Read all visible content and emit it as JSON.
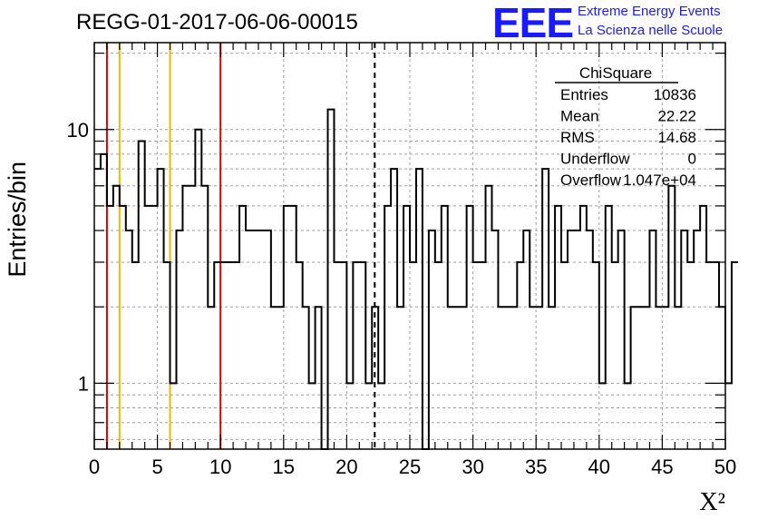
{
  "run_title": "REGG-01-2017-06-06-00015",
  "branding": {
    "logo_text": "EEE",
    "line1": "Extreme Energy Events",
    "line2": "La Scienza nelle Scuole",
    "color": "#1a1aff"
  },
  "chart_data": {
    "type": "histogram",
    "title": "",
    "xlabel": "X²",
    "ylabel": "Entries/bin",
    "xlim": [
      0,
      50
    ],
    "ylim": [
      0.55,
      22
    ],
    "yscale": "log",
    "grid": true,
    "x_ticks": [
      0,
      5,
      10,
      15,
      20,
      25,
      30,
      35,
      40,
      45,
      50
    ],
    "y_tick_labels": [
      {
        "value": 1,
        "label": "1"
      },
      {
        "value": 10,
        "label": "10"
      }
    ],
    "bin_width": 0.5,
    "bin_start": 0,
    "values": [
      7,
      8,
      5,
      6,
      5,
      4,
      3,
      9,
      5,
      5,
      7,
      3,
      1,
      4,
      6,
      6,
      10,
      6,
      2,
      3,
      3,
      3,
      3,
      5,
      4,
      4,
      4,
      4,
      2,
      2,
      5,
      5,
      3,
      2,
      1,
      2,
      0,
      12,
      3,
      3,
      1,
      3,
      3,
      1,
      2,
      1,
      5,
      7,
      2,
      5,
      3,
      7,
      0,
      4,
      3,
      5,
      2,
      2,
      2,
      5,
      3,
      3,
      6,
      4,
      2,
      2,
      2,
      3,
      4,
      2,
      2,
      7,
      2,
      5,
      3,
      4,
      4,
      5,
      4,
      3,
      1,
      5,
      3,
      4,
      1,
      2,
      2,
      2,
      4,
      2,
      2,
      6,
      2,
      4,
      3,
      4,
      5,
      3,
      3,
      2,
      1,
      3
    ],
    "vertical_lines": [
      {
        "x": 1,
        "color": "#dd0000",
        "style": "solid"
      },
      {
        "x": 2,
        "color": "#f2b800",
        "style": "solid"
      },
      {
        "x": 6,
        "color": "#f2b800",
        "style": "solid"
      },
      {
        "x": 10,
        "color": "#dd0000",
        "style": "solid"
      },
      {
        "x": 22.22,
        "color": "#000000",
        "style": "dashed"
      }
    ],
    "stats_box": {
      "name": "ChiSquare",
      "rows": [
        {
          "label": "Entries",
          "value": "10836"
        },
        {
          "label": "Mean",
          "value": "22.22"
        },
        {
          "label": "RMS",
          "value": "14.68"
        },
        {
          "label": "Underflow",
          "value": "0"
        },
        {
          "label": "Overflow",
          "value": "1.047e+04"
        }
      ]
    }
  }
}
